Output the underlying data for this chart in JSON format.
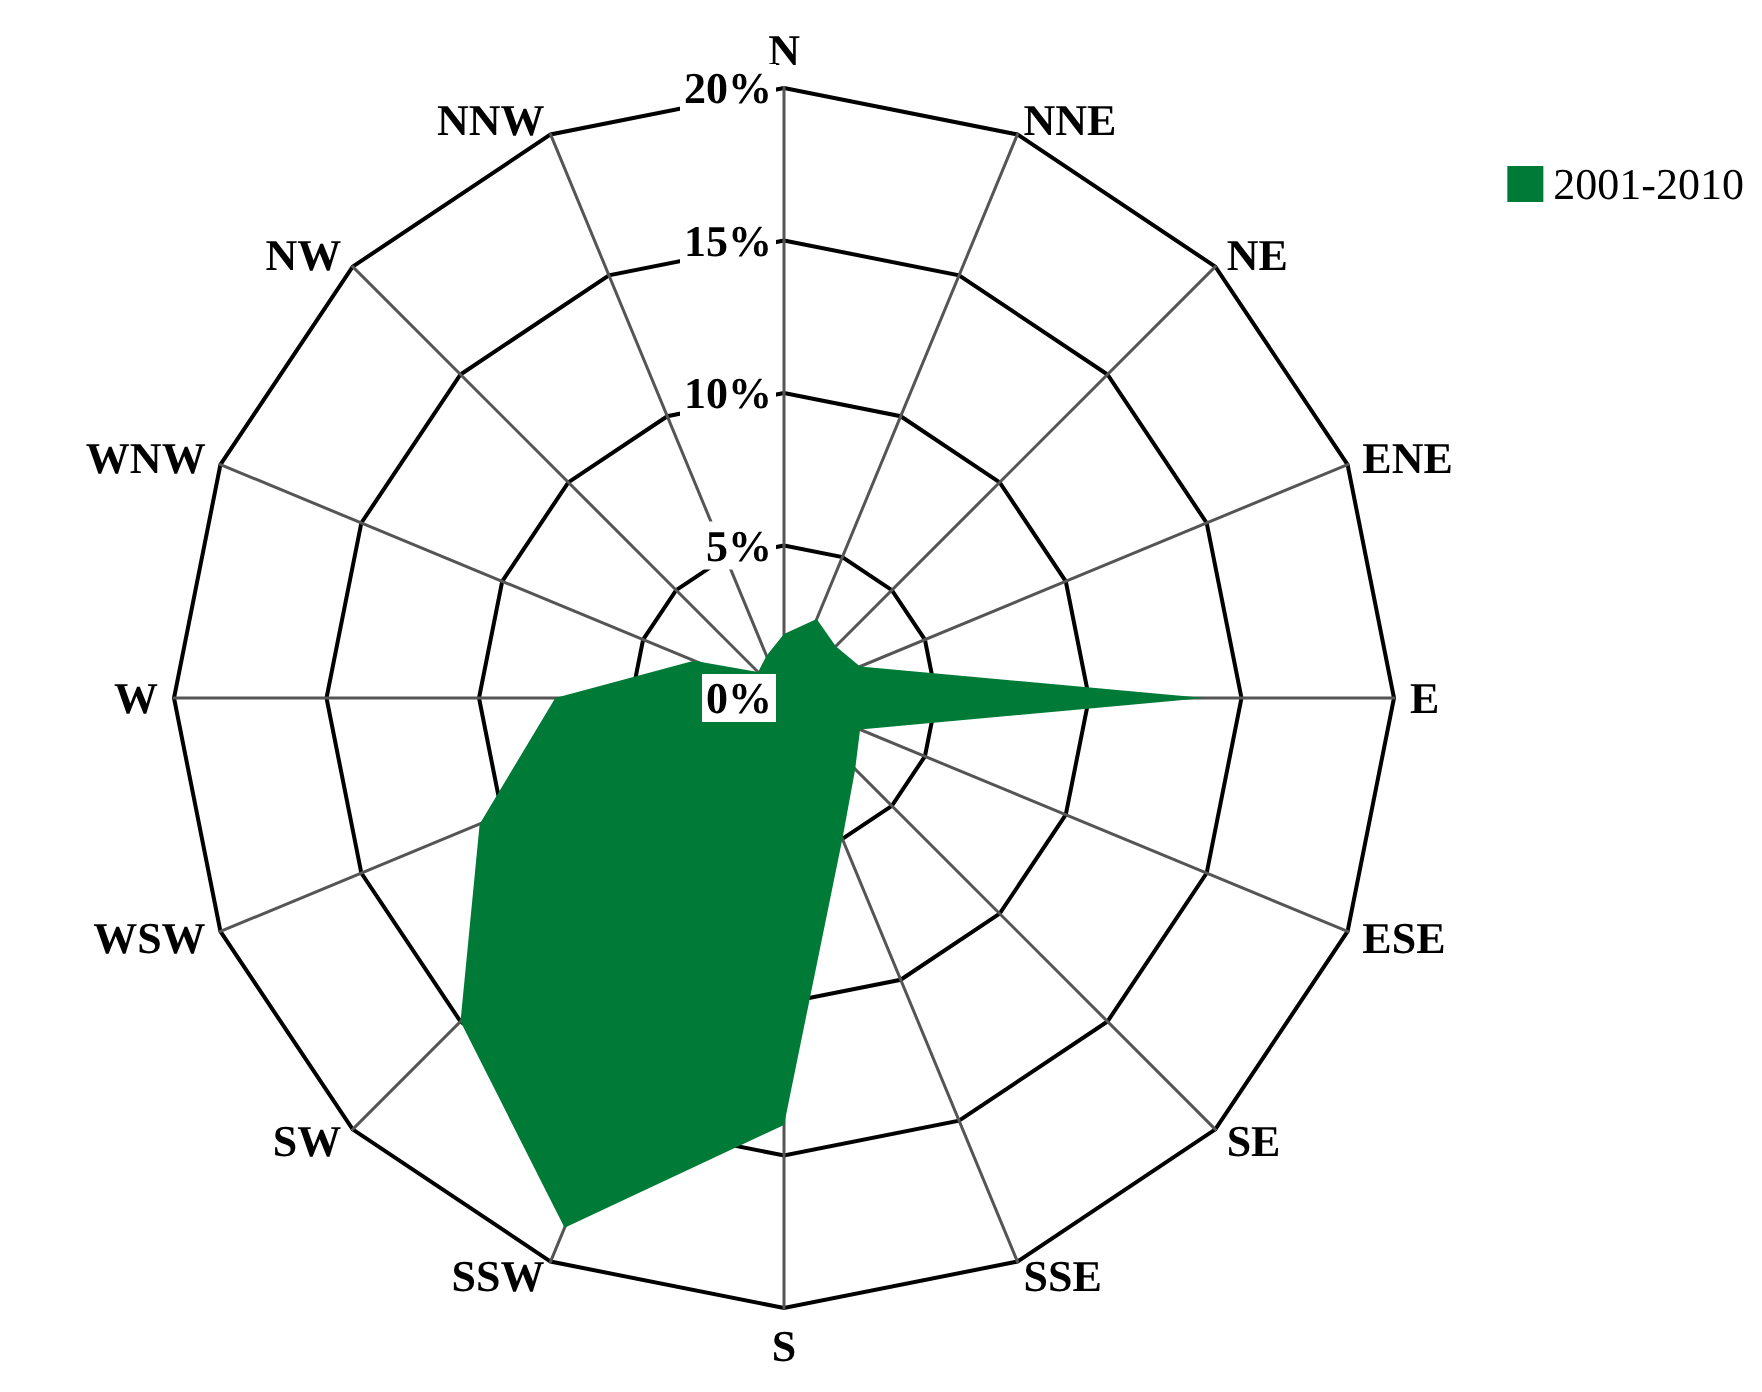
{
  "chart_data": {
    "type": "radar",
    "categories": [
      "N",
      "NNE",
      "NE",
      "ENE",
      "E",
      "ESE",
      "SE",
      "SSE",
      "S",
      "SSW",
      "SW",
      "WSW",
      "W",
      "WNW",
      "NW",
      "NNW"
    ],
    "series": [
      {
        "name": "2001-2010",
        "color": "#007a37",
        "values": [
          2.1,
          2.8,
          2.4,
          2.7,
          13.8,
          2.7,
          3.3,
          5,
          14,
          18.8,
          15,
          10.8,
          7.5,
          3.2,
          1.2,
          1.5
        ]
      }
    ],
    "ylim": [
      0,
      20
    ],
    "yticks": [
      {
        "value": 0,
        "label": "0%"
      },
      {
        "value": 5,
        "label": "5%"
      },
      {
        "value": 10,
        "label": "10%"
      },
      {
        "value": 15,
        "label": "15%"
      },
      {
        "value": 20,
        "label": "20%"
      }
    ],
    "legend": "top right"
  }
}
